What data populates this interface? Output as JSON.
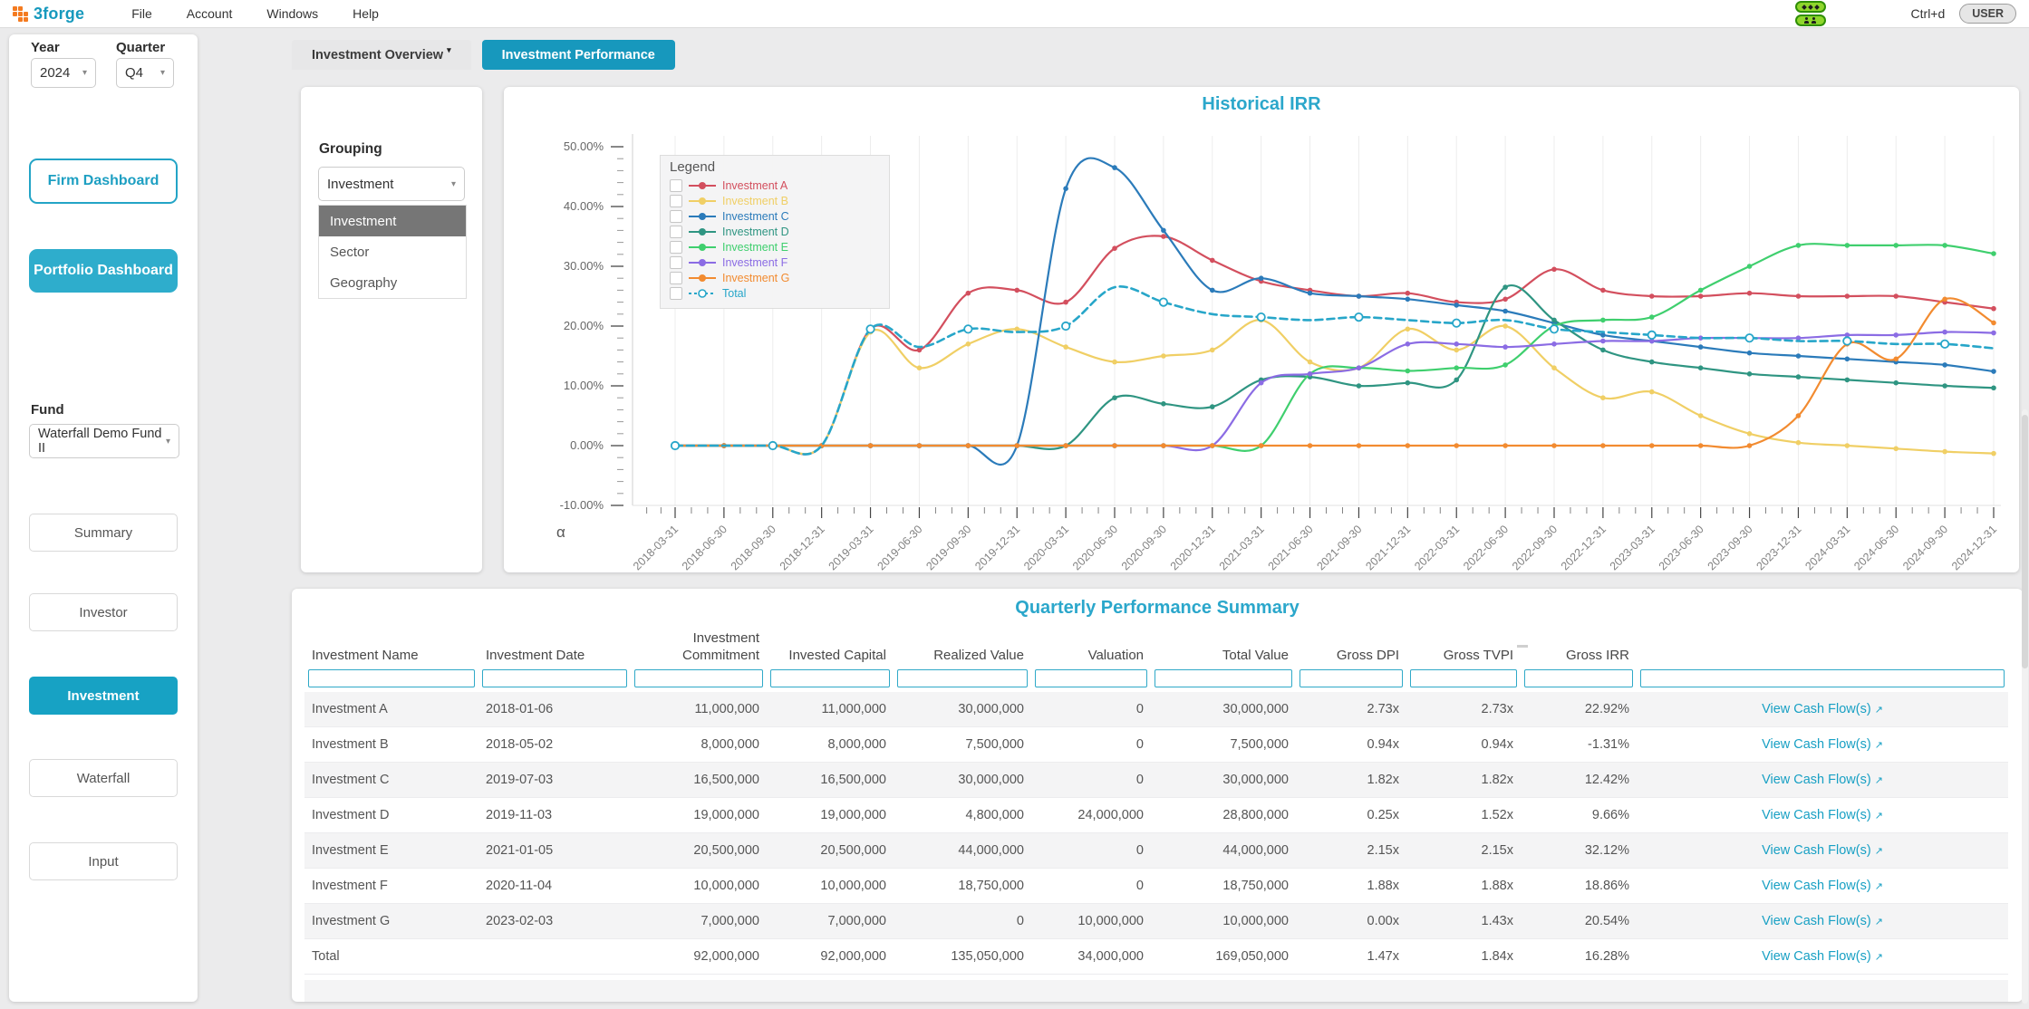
{
  "app": {
    "logo_text": "3forge",
    "menus": [
      "File",
      "Account",
      "Windows",
      "Help"
    ],
    "shortcut": "Ctrl+d",
    "user_button": "USER",
    "accent_color": "#1798bd"
  },
  "sidebar": {
    "year_label": "Year",
    "year_value": "2024",
    "quarter_label": "Quarter",
    "quarter_value": "Q4",
    "firm_dashboard": "Firm Dashboard",
    "portfolio_dashboard": "Portfolio Dashboard",
    "fund_label": "Fund",
    "fund_value": "Waterfall Demo Fund II",
    "nav": [
      {
        "label": "Summary",
        "active": false
      },
      {
        "label": "Investor",
        "active": false
      },
      {
        "label": "Investment",
        "active": true
      },
      {
        "label": "Waterfall",
        "active": false
      },
      {
        "label": "Input",
        "active": false
      }
    ]
  },
  "tabs": [
    {
      "label": "Investment Overview",
      "active": false,
      "has_caret": true
    },
    {
      "label": "Investment Performance",
      "active": true,
      "has_caret": false
    }
  ],
  "grouping": {
    "label": "Grouping",
    "value": "Investment",
    "options": [
      "Investment",
      "Sector",
      "Geography"
    ],
    "selected_option": "Investment"
  },
  "chart_data": {
    "type": "line",
    "title": "Historical IRR",
    "legend_title": "Legend",
    "alpha_label": "α",
    "legend_position": "top-left",
    "grid": "vertical",
    "ylim": [
      -10,
      50
    ],
    "y_ticks": [
      "50.00%",
      "40.00%",
      "30.00%",
      "20.00%",
      "10.00%",
      "0.00%",
      "-10.00%"
    ],
    "x": [
      "2018-03-31",
      "2018-06-30",
      "2018-09-30",
      "2018-12-31",
      "2019-03-31",
      "2019-06-30",
      "2019-09-30",
      "2019-12-31",
      "2020-03-31",
      "2020-06-30",
      "2020-09-30",
      "2020-12-31",
      "2021-03-31",
      "2021-06-30",
      "2021-09-30",
      "2021-12-31",
      "2022-03-31",
      "2022-06-30",
      "2022-09-30",
      "2022-12-31",
      "2023-03-31",
      "2023-06-30",
      "2023-09-30",
      "2023-12-31",
      "2024-03-31",
      "2024-06-30",
      "2024-09-30",
      "2024-12-31"
    ],
    "series": [
      {
        "name": "Investment A",
        "color": "#d34f5e",
        "values": [
          0,
          0,
          0,
          0,
          19.5,
          16,
          25.5,
          26,
          24,
          33,
          35,
          31,
          27.5,
          26,
          25,
          25.5,
          24,
          24.5,
          29.5,
          26,
          25,
          25,
          25.5,
          25,
          25,
          25,
          24,
          22.92
        ]
      },
      {
        "name": "Investment B",
        "color": "#f0cf65",
        "values": [
          0,
          0,
          0,
          0,
          19,
          13,
          17,
          19.5,
          16.5,
          14,
          15,
          16,
          21,
          14,
          13,
          19.5,
          16,
          20,
          13,
          8,
          9,
          5,
          2,
          0.5,
          0,
          -0.5,
          -1,
          -1.31
        ]
      },
      {
        "name": "Investment C",
        "color": "#2b7bba",
        "values": [
          0,
          0,
          0,
          0,
          0,
          0,
          0,
          0,
          43,
          46.5,
          36,
          26,
          28,
          25.5,
          25,
          24.5,
          23.5,
          22.5,
          20.5,
          18.5,
          17.5,
          16.5,
          15.5,
          15,
          14.5,
          14,
          13.5,
          12.42
        ]
      },
      {
        "name": "Investment D",
        "color": "#2f9582",
        "values": [
          0,
          0,
          0,
          0,
          0,
          0,
          0,
          0,
          0,
          8,
          7,
          6.5,
          11,
          11.5,
          10,
          10.5,
          11,
          26.5,
          21,
          16,
          14,
          13,
          12,
          11.5,
          11,
          10.5,
          10,
          9.66
        ]
      },
      {
        "name": "Investment E",
        "color": "#3fcf6e",
        "values": [
          0,
          0,
          0,
          0,
          0,
          0,
          0,
          0,
          0,
          0,
          0,
          0,
          0,
          12,
          13,
          12.5,
          13,
          13.5,
          20,
          21,
          21.5,
          26,
          30,
          33.5,
          33.5,
          33.5,
          33.5,
          32.12
        ]
      },
      {
        "name": "Investment F",
        "color": "#8b6ce4",
        "values": [
          0,
          0,
          0,
          0,
          0,
          0,
          0,
          0,
          0,
          0,
          0,
          0,
          10.5,
          12,
          13,
          17,
          17,
          16.5,
          17,
          17.5,
          17.5,
          18,
          18,
          18,
          18.5,
          18.5,
          19,
          18.86
        ]
      },
      {
        "name": "Investment G",
        "color": "#f28b30",
        "values": [
          0,
          0,
          0,
          0,
          0,
          0,
          0,
          0,
          0,
          0,
          0,
          0,
          0,
          0,
          0,
          0,
          0,
          0,
          0,
          0,
          0,
          0,
          0,
          5,
          17,
          14.5,
          24.5,
          20.54
        ]
      },
      {
        "name": "Total",
        "color": "#27a6c9",
        "dashed": true,
        "values": [
          0,
          0,
          0,
          0,
          19.5,
          16.5,
          19.5,
          19,
          20,
          26.5,
          24,
          22,
          21.5,
          21,
          21.5,
          21,
          20.5,
          21,
          19.5,
          19,
          18.5,
          18,
          18,
          17.5,
          17.5,
          17,
          17,
          16.28
        ]
      }
    ]
  },
  "table": {
    "title": "Quarterly Performance Summary",
    "columns": [
      "Investment Name",
      "Investment Date",
      "Investment Commitment",
      "Invested Capital",
      "Realized Value",
      "Valuation",
      "Total Value",
      "Gross DPI",
      "Gross TVPI",
      "Gross IRR",
      ""
    ],
    "link_label": "View Cash Flow(s)",
    "link_arrow": "↗",
    "rows": [
      [
        "Investment A",
        "2018-01-06",
        "11,000,000",
        "11,000,000",
        "30,000,000",
        "0",
        "30,000,000",
        "2.73x",
        "2.73x",
        "22.92%"
      ],
      [
        "Investment B",
        "2018-05-02",
        "8,000,000",
        "8,000,000",
        "7,500,000",
        "0",
        "7,500,000",
        "0.94x",
        "0.94x",
        "-1.31%"
      ],
      [
        "Investment C",
        "2019-07-03",
        "16,500,000",
        "16,500,000",
        "30,000,000",
        "0",
        "30,000,000",
        "1.82x",
        "1.82x",
        "12.42%"
      ],
      [
        "Investment D",
        "2019-11-03",
        "19,000,000",
        "19,000,000",
        "4,800,000",
        "24,000,000",
        "28,800,000",
        "0.25x",
        "1.52x",
        "9.66%"
      ],
      [
        "Investment E",
        "2021-01-05",
        "20,500,000",
        "20,500,000",
        "44,000,000",
        "0",
        "44,000,000",
        "2.15x",
        "2.15x",
        "32.12%"
      ],
      [
        "Investment F",
        "2020-11-04",
        "10,000,000",
        "10,000,000",
        "18,750,000",
        "0",
        "18,750,000",
        "1.88x",
        "1.88x",
        "18.86%"
      ],
      [
        "Investment G",
        "2023-02-03",
        "7,000,000",
        "7,000,000",
        "0",
        "10,000,000",
        "10,000,000",
        "0.00x",
        "1.43x",
        "20.54%"
      ]
    ],
    "total_row": [
      "Total",
      "",
      "92,000,000",
      "92,000,000",
      "135,050,000",
      "34,000,000",
      "169,050,000",
      "1.47x",
      "1.84x",
      "16.28%"
    ]
  }
}
